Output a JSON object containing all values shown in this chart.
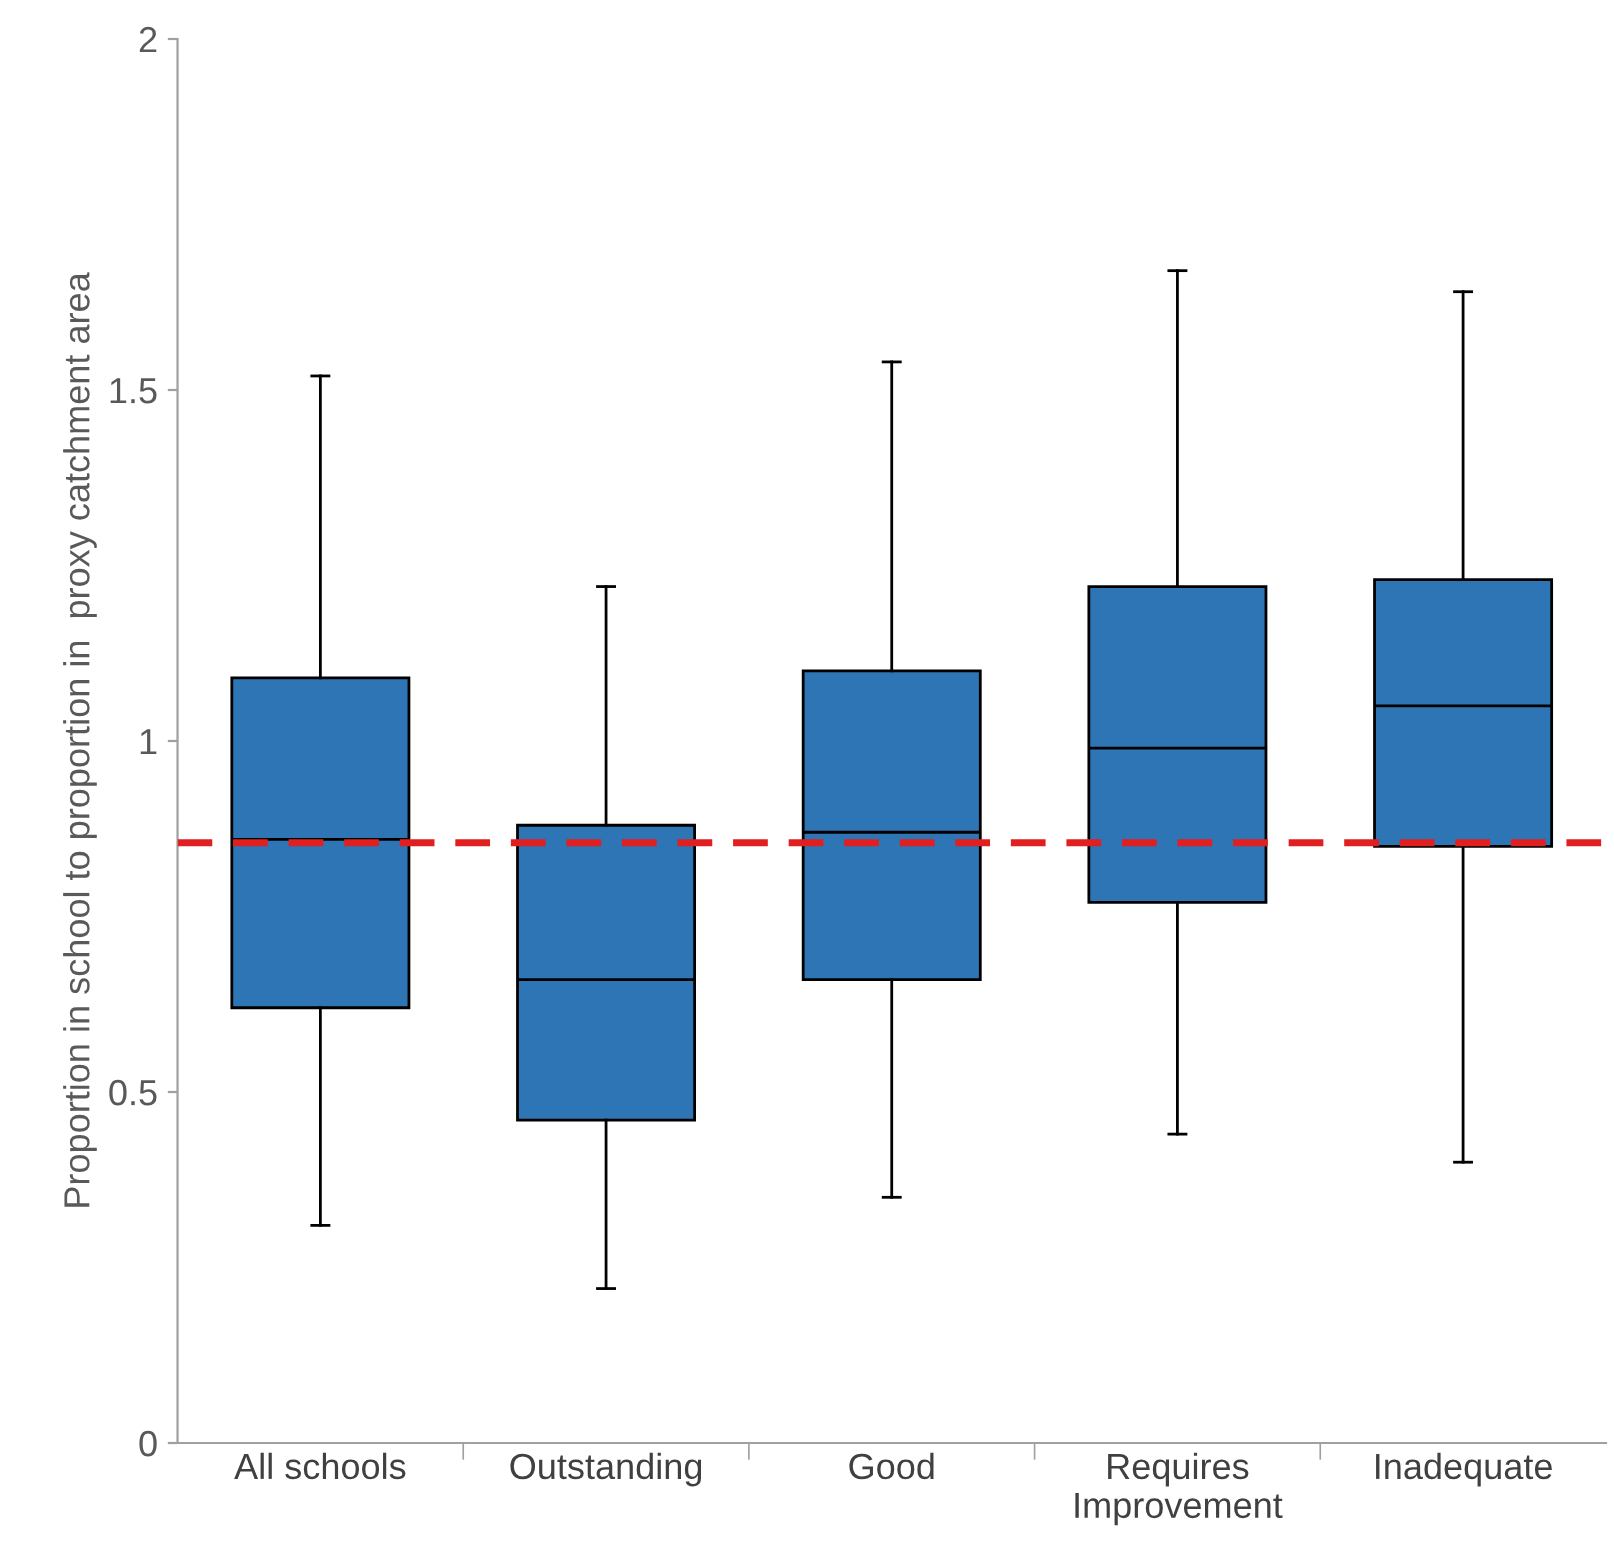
{
  "chart_data": {
    "type": "box",
    "ylabel": "Proportion in school to proportion in  proxy catchment area",
    "categories": [
      "All schools",
      "Outstanding",
      "Good",
      "Requires\nImprovement",
      "Inadequate"
    ],
    "color": "#2e75b6",
    "boxes": [
      {
        "low": 0.31,
        "q1": 0.62,
        "median": 0.86,
        "q3": 1.09,
        "high": 1.52
      },
      {
        "low": 0.22,
        "q1": 0.46,
        "median": 0.66,
        "q3": 0.88,
        "high": 1.22
      },
      {
        "low": 0.35,
        "q1": 0.66,
        "median": 0.87,
        "q3": 1.1,
        "high": 1.54
      },
      {
        "low": 0.44,
        "q1": 0.77,
        "median": 0.99,
        "q3": 1.22,
        "high": 1.67
      },
      {
        "low": 0.4,
        "q1": 0.85,
        "median": 1.05,
        "q3": 1.23,
        "high": 1.64
      }
    ],
    "ylim": [
      0,
      2
    ],
    "yticks": [
      0,
      0.5,
      1,
      1.5,
      2
    ],
    "ref_lines": [
      {
        "axis": "y",
        "value": 0.855,
        "color": "#e02020",
        "line_style": "dashed"
      }
    ],
    "grid": false,
    "legend": false
  }
}
